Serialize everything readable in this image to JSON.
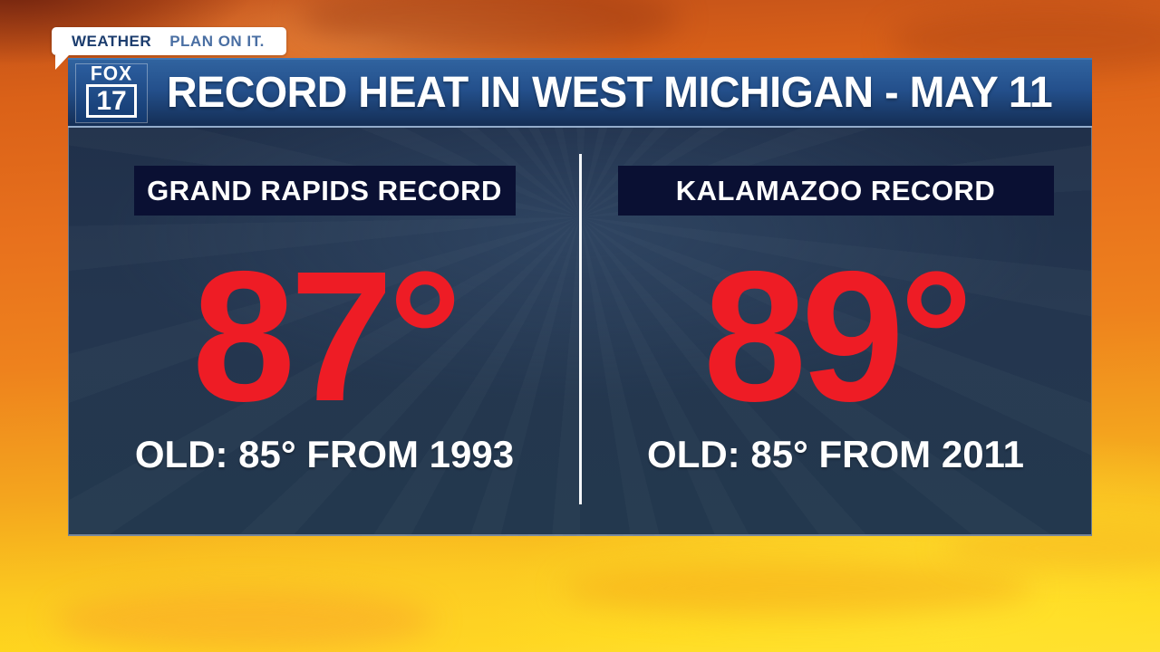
{
  "branding": {
    "network": "FOX",
    "channel": "17",
    "bug_primary": "WEATHER",
    "bug_secondary": "PLAN ON IT."
  },
  "header": {
    "title": "RECORD HEAT IN WEST MICHIGAN - MAY 11"
  },
  "panels": [
    {
      "label": "GRAND RAPIDS RECORD",
      "temperature": "87°",
      "old_record": "OLD: 85° FROM 1993"
    },
    {
      "label": "KALAMAZOO RECORD",
      "temperature": "89°",
      "old_record": "OLD: 85° FROM 2011"
    }
  ],
  "colors": {
    "accent_red": "#ee1c25",
    "panel_navy": "#24364f",
    "header_box_navy": "#0a1033",
    "title_bar_top": "#30639f",
    "title_bar_bottom": "#142e55",
    "brand_blue": "#1c3d6e",
    "tagline_blue": "#4a6fa3",
    "sky_orange": "#e8711d",
    "sky_yellow": "#ffd91e"
  }
}
